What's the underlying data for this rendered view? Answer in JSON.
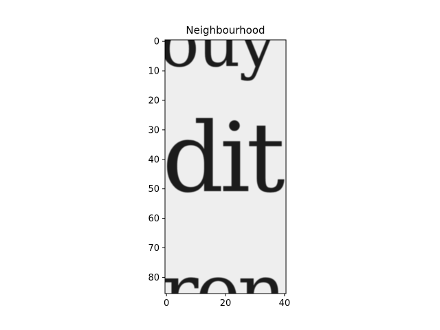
{
  "chart_data": {
    "type": "heatmap",
    "title": "Neighbourhood",
    "xlabel": "",
    "ylabel": "",
    "colormap": "gray",
    "background_value_color": "#eeeeee",
    "ink_color": "#1e1e1e",
    "image_shape": [
      86,
      41
    ],
    "xlim": [
      -0.5,
      40.5
    ],
    "ylim": [
      85.5,
      -0.5
    ],
    "x_ticks": [
      0,
      20,
      40
    ],
    "y_ticks": [
      0,
      10,
      20,
      30,
      40,
      50,
      60,
      70,
      80
    ],
    "grid": false,
    "image_content": {
      "top_fragment": "ouy",
      "middle_word": "dit",
      "bottom_fragment": "ren"
    }
  }
}
